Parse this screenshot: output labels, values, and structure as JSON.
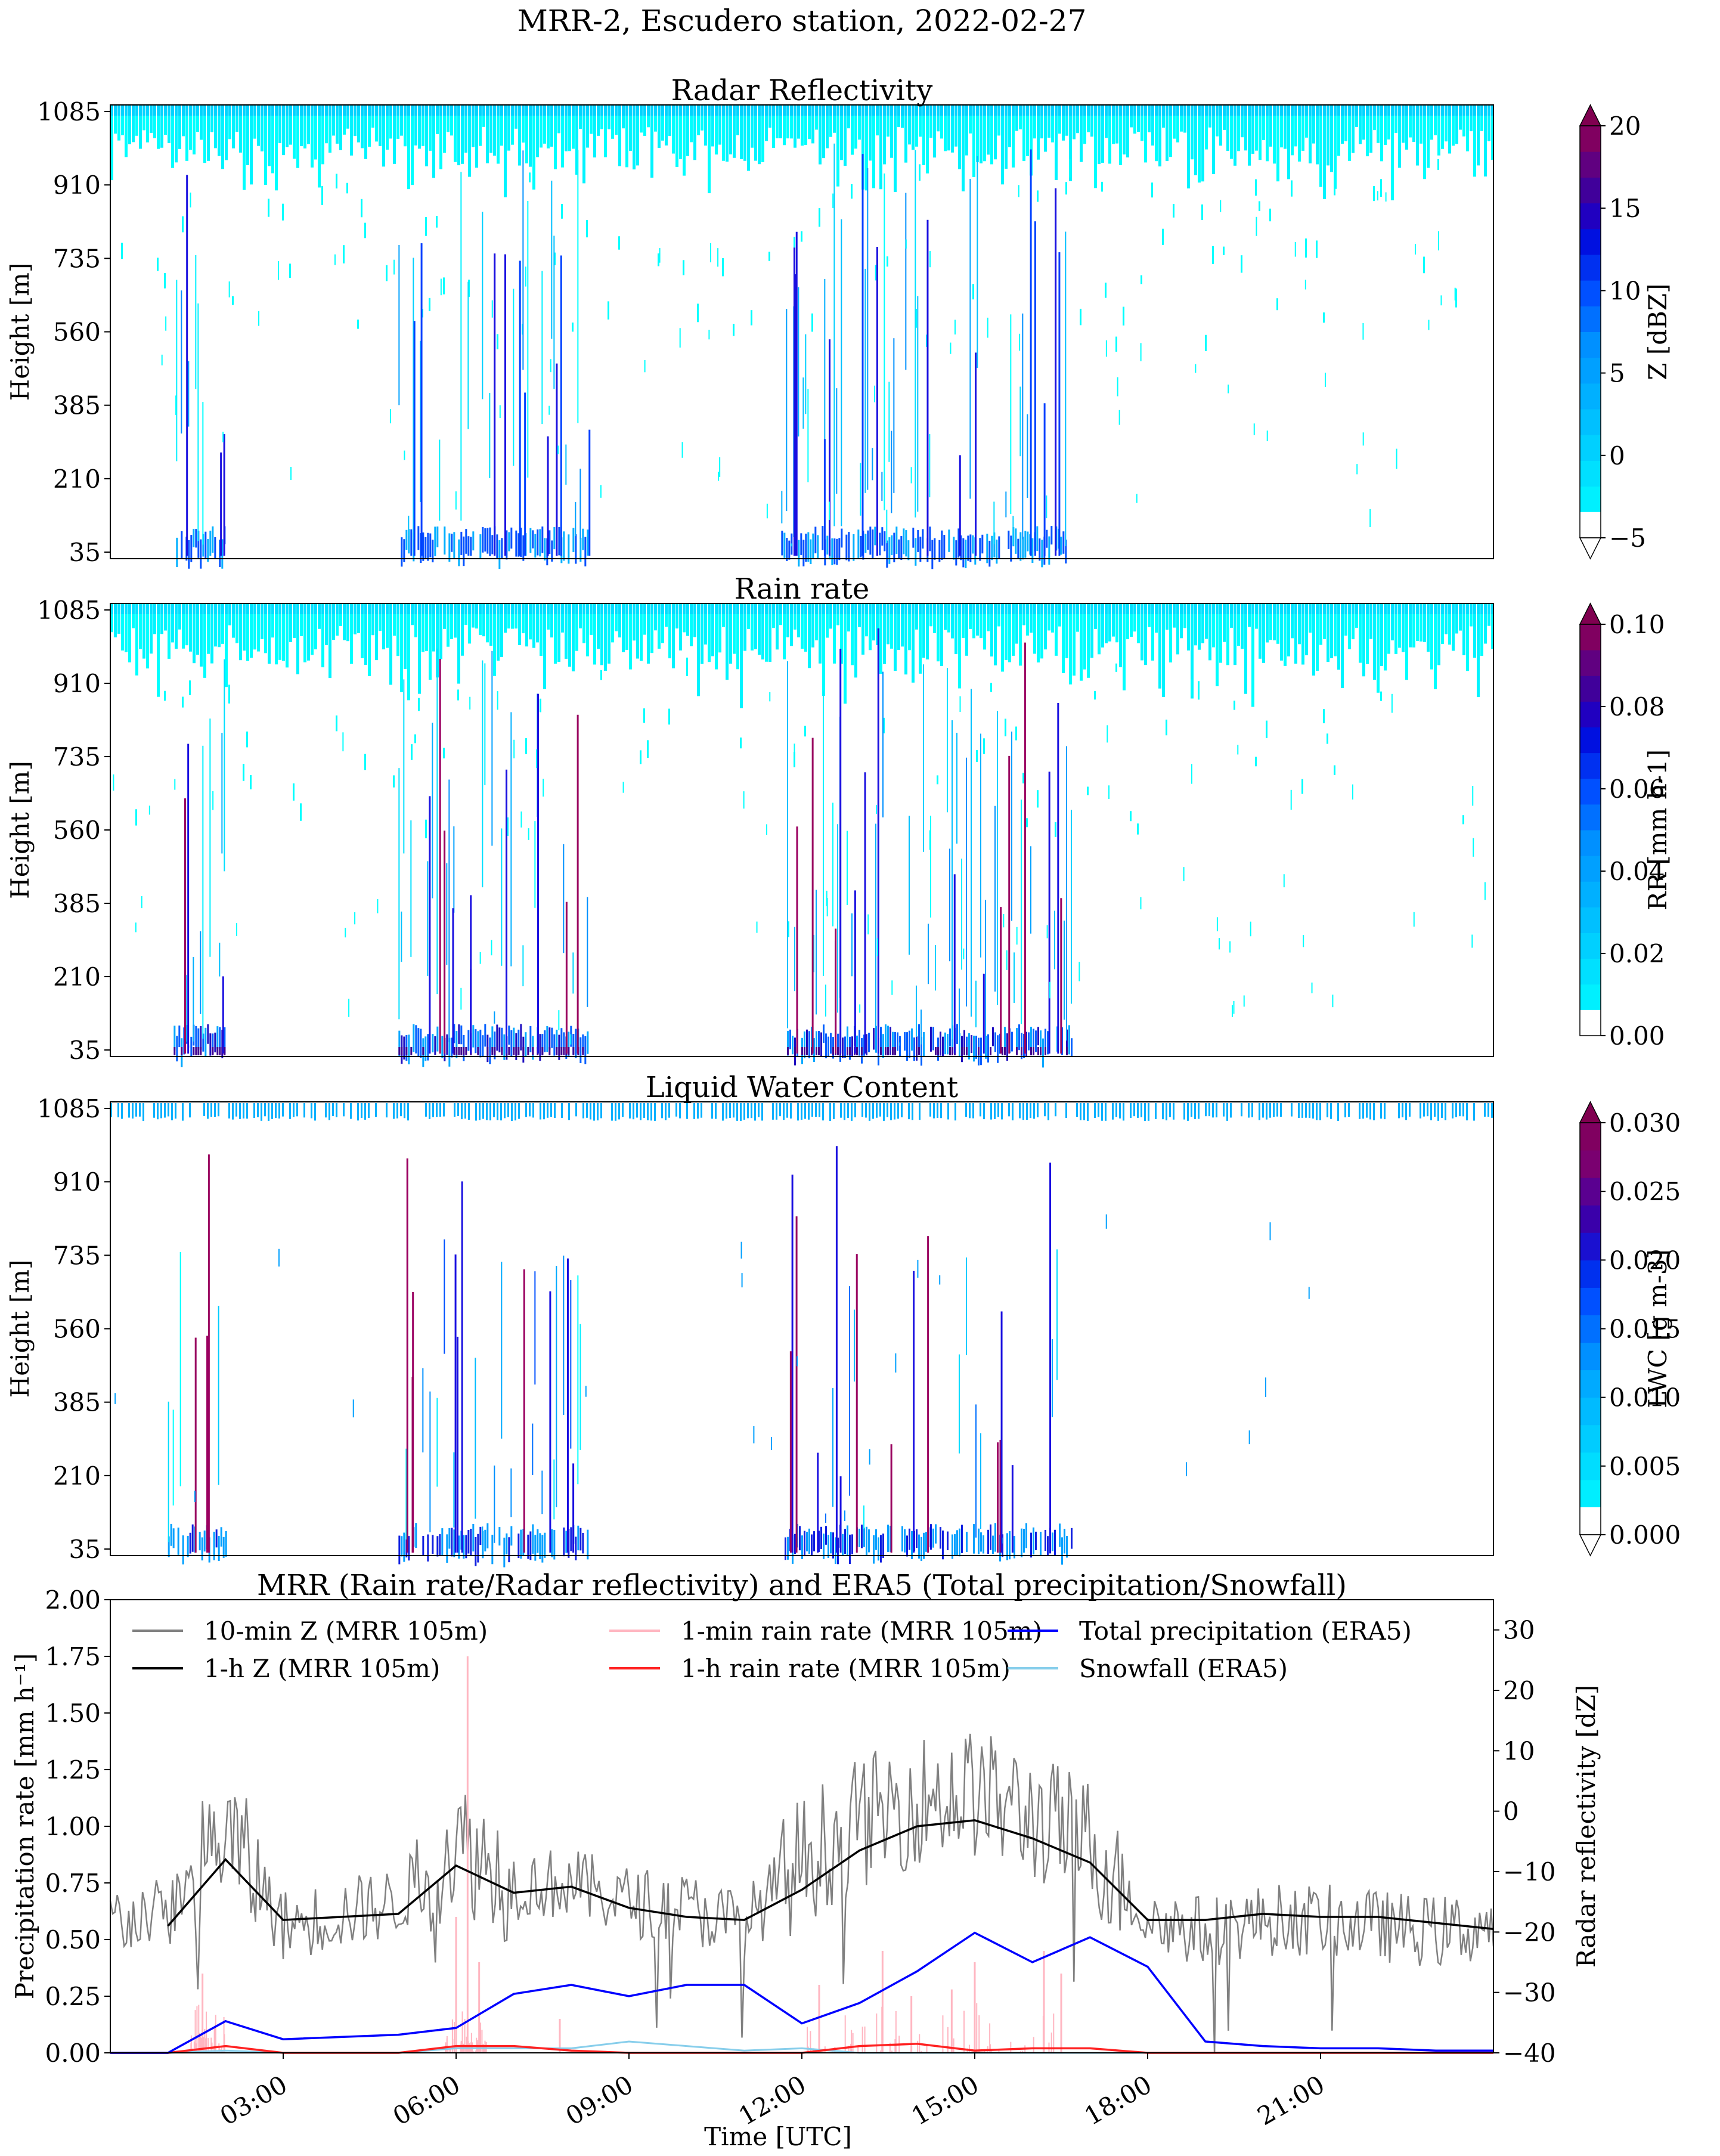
{
  "suptitle": "MRR-2, Escudero station, 2022-02-27",
  "height_ticks": [
    "1085",
    "910",
    "735",
    "560",
    "385",
    "210",
    "35"
  ],
  "height_label": "Height [m]",
  "chart_data": [
    {
      "type": "heatmap",
      "title": "Radar Reflectivity",
      "ylabel": "Height [m]",
      "xlim_hours": [
        0,
        24
      ],
      "ylim_m": [
        35,
        1085
      ],
      "colorbar": {
        "label": "Z [dBZ]",
        "ticks": [
          "20",
          "15",
          "10",
          "5",
          "0",
          "−5"
        ],
        "vmin": -5,
        "vmax": 20,
        "extend": "both"
      },
      "events_utc_hours": [
        [
          1.1,
          2.0
        ],
        [
          5.0,
          8.3
        ],
        [
          11.6,
          16.6
        ]
      ]
    },
    {
      "type": "heatmap",
      "title": "Rain rate",
      "ylabel": "Height [m]",
      "xlim_hours": [
        0,
        24
      ],
      "ylim_m": [
        35,
        1085
      ],
      "colorbar": {
        "label": "RR [mm h-1]",
        "ticks": [
          "0.10",
          "0.08",
          "0.06",
          "0.04",
          "0.02",
          "0.00"
        ],
        "vmin": 0,
        "vmax": 0.1,
        "extend": "max"
      },
      "events_utc_hours": [
        [
          1.1,
          2.0
        ],
        [
          5.0,
          8.3
        ],
        [
          11.7,
          16.7
        ]
      ]
    },
    {
      "type": "heatmap",
      "title": "Liquid Water Content",
      "ylabel": "Height [m]",
      "xlim_hours": [
        0,
        24
      ],
      "ylim_m": [
        35,
        1085
      ],
      "colorbar": {
        "label": "LWC [g m-3]",
        "ticks": [
          "0.030",
          "0.025",
          "0.020",
          "0.015",
          "0.010",
          "0.005",
          "0.000"
        ],
        "vmin": 0,
        "vmax": 0.03,
        "extend": "both"
      },
      "events_utc_hours": [
        [
          1.0,
          2.0
        ],
        [
          5.0,
          8.3
        ],
        [
          11.7,
          16.7
        ]
      ]
    },
    {
      "type": "line",
      "title": "MRR (Rain rate/Radar reflectivity) and ERA5 (Total precipitation/Snowfall)",
      "xlabel": "Time [UTC]",
      "ylabel": "Precipitation rate [mm h⁻¹]",
      "ylabel_right": "Radar reflectivity [dZ]",
      "xlim_hours": [
        0,
        24
      ],
      "ylim": [
        0,
        2.0
      ],
      "ylim_right": [
        -40,
        35
      ],
      "x_ticks": [
        "03:00",
        "06:00",
        "09:00",
        "12:00",
        "15:00",
        "18:00",
        "21:00"
      ],
      "y_ticks": [
        "0.00",
        "0.25",
        "0.50",
        "0.75",
        "1.00",
        "1.25",
        "1.50",
        "1.75",
        "2.00"
      ],
      "y_ticks_right": [
        "−40",
        "−30",
        "−20",
        "−10",
        "0",
        "10",
        "20",
        "30"
      ],
      "legend": [
        "10-min Z (MRR 105m)",
        "1-h Z (MRR 105m)",
        "1-min rain rate (MRR 105m)",
        "1-h rain rate (MRR 105m)",
        "Total precipitation (ERA5)",
        "Snowfall (ERA5)"
      ],
      "series": [
        {
          "name": "1-h Z (MRR 105m)",
          "axis": "right",
          "color": "#000000",
          "x": [
            1,
            2,
            3,
            5,
            6,
            7,
            8,
            9,
            10,
            11,
            12,
            13,
            14,
            15,
            16,
            17,
            18,
            19,
            20,
            21,
            22,
            23,
            24
          ],
          "values": [
            -19,
            -8,
            -18,
            -17,
            -9,
            -13.5,
            -12.5,
            -16,
            -17.5,
            -18,
            -13,
            -6.5,
            -2.5,
            -1.5,
            -4.5,
            -8.5,
            -18,
            -18,
            -17,
            -17.5,
            -17.5,
            -18.5,
            -19.5
          ]
        },
        {
          "name": "Total precipitation (ERA5)",
          "axis": "left",
          "color": "#0000ff",
          "x": [
            0,
            1,
            2,
            3,
            5,
            6,
            7,
            8,
            9,
            10,
            11,
            12,
            13,
            14,
            15,
            16,
            17,
            18,
            19,
            20,
            21,
            22,
            23,
            24
          ],
          "values": [
            0,
            0,
            0.14,
            0.06,
            0.08,
            0.11,
            0.26,
            0.3,
            0.25,
            0.3,
            0.3,
            0.13,
            0.22,
            0.36,
            0.53,
            0.4,
            0.51,
            0.38,
            0.05,
            0.03,
            0.02,
            0.02,
            0.01,
            0.01
          ]
        },
        {
          "name": "1-h rain rate (MRR 105m)",
          "axis": "left",
          "color": "#ff2222",
          "x": [
            0,
            1,
            2,
            3,
            5,
            6,
            7,
            8,
            9,
            12,
            13,
            14,
            15,
            16,
            17,
            18,
            24
          ],
          "values": [
            0,
            0,
            0.03,
            0,
            0,
            0.03,
            0.03,
            0.01,
            0,
            0,
            0.03,
            0.04,
            0.01,
            0.02,
            0.02,
            0,
            0
          ]
        },
        {
          "name": "Snowfall (ERA5)",
          "axis": "left",
          "color": "#87ceeb",
          "x": [
            0,
            1,
            2,
            3,
            5,
            6,
            7,
            8,
            9,
            10,
            11,
            12,
            13,
            24
          ],
          "values": [
            0,
            0,
            0.01,
            0,
            0,
            0.02,
            0.02,
            0.02,
            0.05,
            0.03,
            0.01,
            0.02,
            0,
            0
          ]
        },
        {
          "name": "10-min Z (MRR 105m)",
          "axis": "right",
          "color": "#808080",
          "noise_envelope_note": "high-frequency noisy series around the 1-h mean",
          "x": [
            0,
            1,
            2,
            3,
            5,
            6,
            7,
            8,
            9,
            10,
            11,
            12,
            13,
            14,
            15,
            16,
            17,
            18,
            19,
            20,
            21,
            22,
            23,
            24
          ],
          "values": [
            -18,
            -17,
            -3,
            -19,
            -15,
            -5,
            -12,
            -12,
            -15,
            -16,
            -19,
            -8,
            -2,
            2,
            3,
            -1,
            -5,
            -18,
            -20,
            -18,
            -18,
            -19,
            -20,
            -19
          ]
        },
        {
          "name": "1-min rain rate (MRR 105m)",
          "axis": "left",
          "color": "#ffb6c1",
          "spikes": [
            [
              1.6,
              0.35
            ],
            [
              6.0,
              0.6
            ],
            [
              6.2,
              1.75
            ],
            [
              6.4,
              0.4
            ],
            [
              7.8,
              0.15
            ],
            [
              12.3,
              0.3
            ],
            [
              13.4,
              0.45
            ],
            [
              13.9,
              0.25
            ],
            [
              14.6,
              0.28
            ],
            [
              15.0,
              0.4
            ],
            [
              16.2,
              0.45
            ],
            [
              16.5,
              0.35
            ]
          ]
        }
      ]
    }
  ]
}
